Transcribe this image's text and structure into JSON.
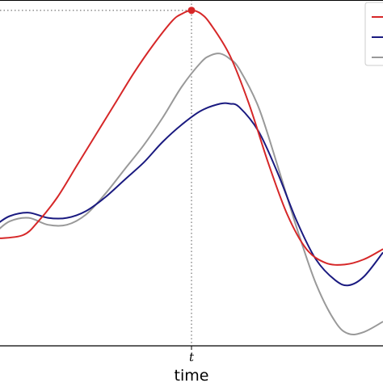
{
  "chart_data": {
    "type": "line",
    "xlabel": "time",
    "ylabel": "",
    "title": "",
    "xlim": [
      -1,
      1
    ],
    "ylim": [
      0,
      1
    ],
    "grid": false,
    "legend": "top-right",
    "x_ticks": [
      {
        "value": 0,
        "label": "t"
      }
    ],
    "marker": {
      "x": 0,
      "y": 0.97,
      "color": "#d62728"
    },
    "reference_lines": {
      "vertical_x": 0,
      "horizontal_y": 0.97
    },
    "series": [
      {
        "color": "#d62728",
        "x": [
          -1.02,
          -0.88,
          -0.8,
          -0.7,
          -0.6,
          -0.5,
          -0.4,
          -0.3,
          -0.2,
          -0.1,
          -0.05,
          0.0,
          0.05,
          0.1,
          0.2,
          0.3,
          0.4,
          0.5,
          0.6,
          0.7,
          0.8,
          0.9,
          1.0
        ],
        "y": [
          0.31,
          0.32,
          0.36,
          0.43,
          0.52,
          0.61,
          0.7,
          0.79,
          0.87,
          0.94,
          0.96,
          0.97,
          0.96,
          0.93,
          0.84,
          0.7,
          0.53,
          0.38,
          0.28,
          0.24,
          0.235,
          0.25,
          0.28
        ]
      },
      {
        "color": "#1a1a80",
        "x": [
          -1.02,
          -0.95,
          -0.85,
          -0.75,
          -0.65,
          -0.55,
          -0.45,
          -0.35,
          -0.25,
          -0.15,
          -0.05,
          0.05,
          0.15,
          0.2,
          0.25,
          0.35,
          0.45,
          0.55,
          0.65,
          0.75,
          0.82,
          0.9,
          1.0
        ],
        "y": [
          0.35,
          0.375,
          0.385,
          0.37,
          0.37,
          0.39,
          0.43,
          0.48,
          0.53,
          0.59,
          0.64,
          0.68,
          0.7,
          0.7,
          0.69,
          0.62,
          0.5,
          0.36,
          0.25,
          0.19,
          0.175,
          0.2,
          0.27
        ]
      },
      {
        "color": "#999999",
        "x": [
          -1.02,
          -0.95,
          -0.85,
          -0.75,
          -0.65,
          -0.55,
          -0.45,
          -0.35,
          -0.25,
          -0.15,
          -0.05,
          0.05,
          0.1,
          0.15,
          0.2,
          0.25,
          0.35,
          0.45,
          0.55,
          0.65,
          0.75,
          0.82,
          0.9,
          1.0
        ],
        "y": [
          0.33,
          0.36,
          0.37,
          0.35,
          0.35,
          0.38,
          0.44,
          0.51,
          0.58,
          0.66,
          0.75,
          0.82,
          0.84,
          0.845,
          0.83,
          0.8,
          0.69,
          0.52,
          0.34,
          0.18,
          0.07,
          0.035,
          0.04,
          0.07
        ]
      }
    ]
  }
}
